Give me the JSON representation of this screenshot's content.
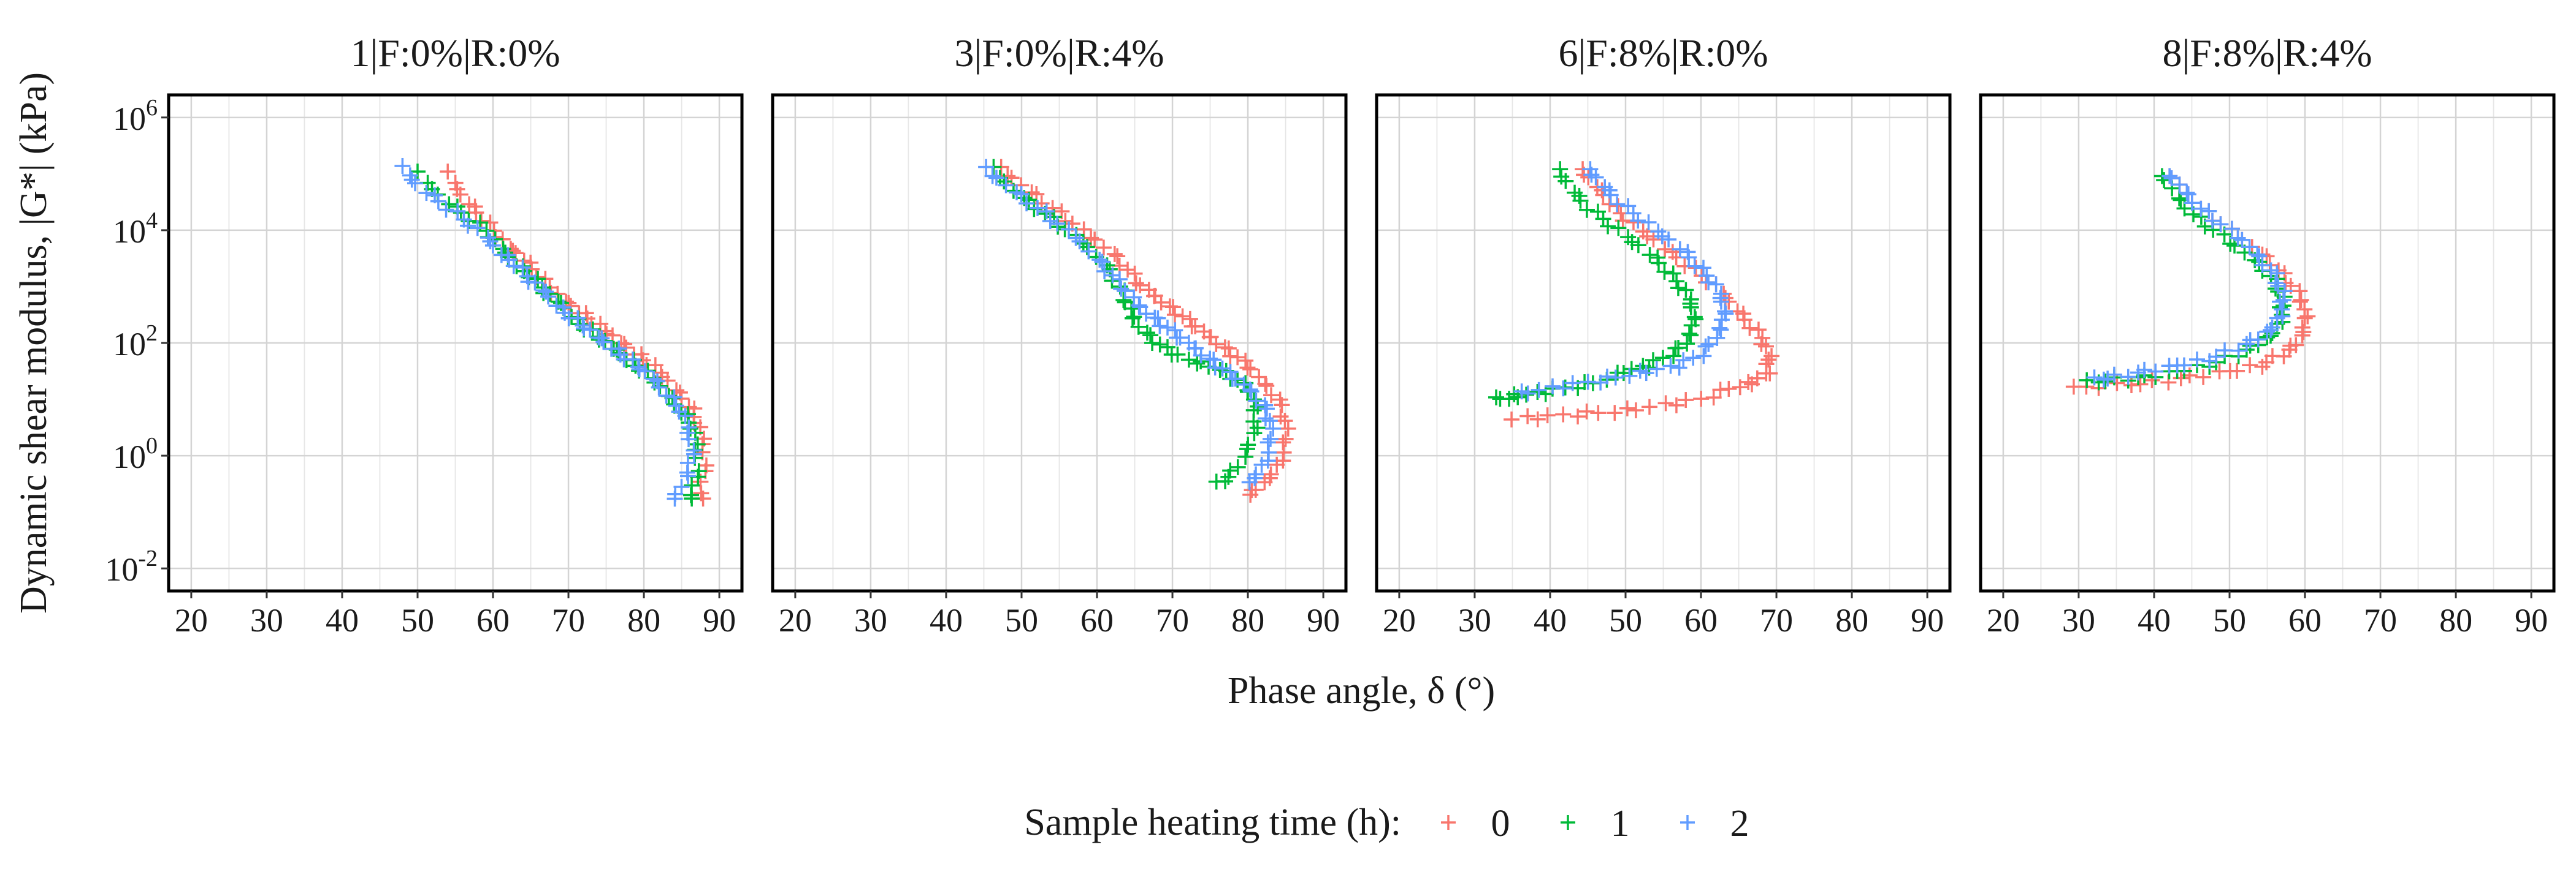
{
  "chart_data": {
    "type": "scatter",
    "x_label": "Phase angle, δ (°)",
    "y_label": "Dynamic shear modulus, |G*| (kPa)",
    "y_scale": "log10",
    "x_ticks": [
      "20",
      "30",
      "40",
      "50",
      "60",
      "70",
      "80",
      "90"
    ],
    "x_range": [
      17,
      93
    ],
    "y_ticks": [
      {
        "exp": -2,
        "label": "10",
        "sup": "-2"
      },
      {
        "exp": 0,
        "label": "10",
        "sup": "0"
      },
      {
        "exp": 2,
        "label": "10",
        "sup": "2"
      },
      {
        "exp": 4,
        "label": "10",
        "sup": "4"
      },
      {
        "exp": 6,
        "label": "10",
        "sup": "6"
      }
    ],
    "y_range_log10": [
      -2.4,
      6.4
    ],
    "marker": "+",
    "legend": {
      "title": "Sample heating time (h):",
      "position": "bottom",
      "entries": [
        {
          "label": "0",
          "color": "#F8766D"
        },
        {
          "label": "1",
          "color": "#00BA38"
        },
        {
          "label": "2",
          "color": "#619CFF"
        }
      ]
    },
    "panels": [
      {
        "title": "1|F:0%|R:0%",
        "series": [
          {
            "name": "0",
            "points": [
              [
                54,
                5.0
              ],
              [
                56,
                4.6
              ],
              [
                58,
                4.3
              ],
              [
                60,
                4.0
              ],
              [
                62,
                3.7
              ],
              [
                64,
                3.5
              ],
              [
                66,
                3.2
              ],
              [
                68,
                2.9
              ],
              [
                70,
                2.7
              ],
              [
                72,
                2.5
              ],
              [
                74,
                2.3
              ],
              [
                76,
                2.1
              ],
              [
                78,
                1.9
              ],
              [
                80,
                1.7
              ],
              [
                82,
                1.5
              ],
              [
                84,
                1.2
              ],
              [
                86,
                0.9
              ],
              [
                87,
                0.6
              ],
              [
                88,
                0.2
              ],
              [
                88,
                -0.3
              ],
              [
                87.5,
                -0.8
              ]
            ]
          },
          {
            "name": "1",
            "points": [
              [
                50,
                5.0
              ],
              [
                53,
                4.6
              ],
              [
                56,
                4.3
              ],
              [
                59,
                4.0
              ],
              [
                61,
                3.7
              ],
              [
                63,
                3.4
              ],
              [
                65,
                3.2
              ],
              [
                67,
                2.9
              ],
              [
                69,
                2.7
              ],
              [
                71,
                2.4
              ],
              [
                73,
                2.2
              ],
              [
                75,
                2.0
              ],
              [
                77,
                1.8
              ],
              [
                79,
                1.6
              ],
              [
                81,
                1.4
              ],
              [
                83,
                1.1
              ],
              [
                85,
                0.8
              ],
              [
                86.5,
                0.5
              ],
              [
                87,
                0.1
              ],
              [
                87,
                -0.4
              ],
              [
                86,
                -0.8
              ]
            ]
          },
          {
            "name": "2",
            "points": [
              [
                48,
                5.1
              ],
              [
                50,
                4.8
              ],
              [
                53,
                4.5
              ],
              [
                56,
                4.2
              ],
              [
                59,
                3.9
              ],
              [
                61,
                3.6
              ],
              [
                63,
                3.4
              ],
              [
                65,
                3.1
              ],
              [
                67,
                2.9
              ],
              [
                69,
                2.6
              ],
              [
                71,
                2.4
              ],
              [
                73,
                2.2
              ],
              [
                75,
                2.0
              ],
              [
                77,
                1.8
              ],
              [
                79,
                1.6
              ],
              [
                81,
                1.4
              ],
              [
                83,
                1.1
              ],
              [
                85,
                0.8
              ],
              [
                86,
                0.4
              ],
              [
                86.5,
                0.0
              ],
              [
                85.5,
                -0.4
              ],
              [
                84,
                -0.8
              ]
            ]
          }
        ]
      },
      {
        "title": "3|F:0%|R:4%",
        "series": [
          {
            "name": "0",
            "points": [
              [
                47,
                5.1
              ],
              [
                50,
                4.8
              ],
              [
                53,
                4.5
              ],
              [
                56,
                4.2
              ],
              [
                59,
                3.9
              ],
              [
                62,
                3.6
              ],
              [
                64,
                3.3
              ],
              [
                66,
                3.0
              ],
              [
                68,
                2.8
              ],
              [
                70,
                2.6
              ],
              [
                72,
                2.4
              ],
              [
                74,
                2.2
              ],
              [
                76,
                2.0
              ],
              [
                78,
                1.8
              ],
              [
                80,
                1.6
              ],
              [
                82,
                1.3
              ],
              [
                84,
                1.0
              ],
              [
                85,
                0.6
              ],
              [
                85,
                0.2
              ],
              [
                84,
                -0.2
              ],
              [
                82,
                -0.5
              ],
              [
                80,
                -0.7
              ]
            ]
          },
          {
            "name": "1",
            "points": [
              [
                46,
                5.1
              ],
              [
                49,
                4.7
              ],
              [
                52,
                4.4
              ],
              [
                55,
                4.1
              ],
              [
                58,
                3.8
              ],
              [
                61,
                3.4
              ],
              [
                63,
                3.0
              ],
              [
                64,
                2.7
              ],
              [
                65,
                2.4
              ],
              [
                67,
                2.1
              ],
              [
                69,
                1.9
              ],
              [
                72,
                1.7
              ],
              [
                75,
                1.6
              ],
              [
                78,
                1.4
              ],
              [
                80,
                1.2
              ],
              [
                81,
                0.9
              ],
              [
                81,
                0.5
              ],
              [
                80,
                0.1
              ],
              [
                78,
                -0.3
              ],
              [
                76,
                -0.5
              ]
            ]
          },
          {
            "name": "2",
            "points": [
              [
                45,
                5.1
              ],
              [
                48,
                4.8
              ],
              [
                51,
                4.5
              ],
              [
                54,
                4.2
              ],
              [
                57,
                3.9
              ],
              [
                60,
                3.5
              ],
              [
                62,
                3.2
              ],
              [
                64,
                2.9
              ],
              [
                66,
                2.6
              ],
              [
                68,
                2.4
              ],
              [
                70,
                2.2
              ],
              [
                72,
                2.0
              ],
              [
                74,
                1.8
              ],
              [
                76,
                1.6
              ],
              [
                78,
                1.4
              ],
              [
                80,
                1.2
              ],
              [
                82,
                0.9
              ],
              [
                83,
                0.6
              ],
              [
                83,
                0.2
              ],
              [
                82,
                -0.2
              ],
              [
                80,
                -0.5
              ]
            ]
          }
        ]
      },
      {
        "title": "6|F:8%|R:0%",
        "series": [
          {
            "name": "0",
            "points": [
              [
                44,
                5.1
              ],
              [
                46,
                4.8
              ],
              [
                48,
                4.5
              ],
              [
                50,
                4.2
              ],
              [
                53,
                3.9
              ],
              [
                56,
                3.6
              ],
              [
                59,
                3.3
              ],
              [
                62,
                3.0
              ],
              [
                64,
                2.7
              ],
              [
                66,
                2.4
              ],
              [
                68,
                2.1
              ],
              [
                69,
                1.8
              ],
              [
                69,
                1.5
              ],
              [
                67,
                1.3
              ],
              [
                64,
                1.2
              ],
              [
                60,
                1.0
              ],
              [
                55,
                0.9
              ],
              [
                50,
                0.8
              ],
              [
                45,
                0.75
              ],
              [
                40,
                0.7
              ],
              [
                35,
                0.65
              ]
            ]
          },
          {
            "name": "1",
            "points": [
              [
                41,
                5.1
              ],
              [
                43,
                4.7
              ],
              [
                45,
                4.4
              ],
              [
                48,
                4.1
              ],
              [
                51,
                3.8
              ],
              [
                54,
                3.5
              ],
              [
                56,
                3.2
              ],
              [
                58,
                2.9
              ],
              [
                59,
                2.6
              ],
              [
                59,
                2.3
              ],
              [
                58,
                2.0
              ],
              [
                56,
                1.8
              ],
              [
                53,
                1.6
              ],
              [
                50,
                1.5
              ],
              [
                46,
                1.3
              ],
              [
                42,
                1.2
              ],
              [
                38,
                1.1
              ],
              [
                35,
                1.05
              ],
              [
                33,
                1.0
              ]
            ]
          },
          {
            "name": "2",
            "points": [
              [
                45,
                5.1
              ],
              [
                47,
                4.8
              ],
              [
                49,
                4.5
              ],
              [
                52,
                4.2
              ],
              [
                55,
                3.9
              ],
              [
                58,
                3.6
              ],
              [
                60,
                3.3
              ],
              [
                62,
                3.0
              ],
              [
                63,
                2.7
              ],
              [
                63,
                2.4
              ],
              [
                62,
                2.1
              ],
              [
                60,
                1.8
              ],
              [
                57,
                1.6
              ],
              [
                53,
                1.5
              ],
              [
                49,
                1.4
              ],
              [
                45,
                1.3
              ],
              [
                40,
                1.2
              ],
              [
                36,
                1.1
              ]
            ]
          }
        ]
      },
      {
        "title": "8|F:8%|R:4%",
        "series": [
          {
            "name": "0",
            "points": [
              [
                42,
                5.0
              ],
              [
                44,
                4.7
              ],
              [
                46,
                4.4
              ],
              [
                49,
                4.1
              ],
              [
                52,
                3.8
              ],
              [
                55,
                3.5
              ],
              [
                57,
                3.2
              ],
              [
                59,
                2.9
              ],
              [
                60,
                2.6
              ],
              [
                60,
                2.3
              ],
              [
                59,
                2.0
              ],
              [
                57,
                1.8
              ],
              [
                54,
                1.6
              ],
              [
                50,
                1.5
              ],
              [
                45,
                1.4
              ],
              [
                40,
                1.3
              ],
              [
                35,
                1.25
              ],
              [
                29,
                1.2
              ]
            ]
          },
          {
            "name": "1",
            "points": [
              [
                41,
                5.0
              ],
              [
                43,
                4.6
              ],
              [
                45,
                4.3
              ],
              [
                48,
                4.0
              ],
              [
                51,
                3.7
              ],
              [
                54,
                3.4
              ],
              [
                56,
                3.1
              ],
              [
                57,
                2.8
              ],
              [
                57,
                2.5
              ],
              [
                56,
                2.2
              ],
              [
                54,
                2.0
              ],
              [
                51,
                1.8
              ],
              [
                47,
                1.6
              ],
              [
                43,
                1.5
              ],
              [
                39,
                1.4
              ],
              [
                35,
                1.35
              ],
              [
                31,
                1.3
              ]
            ]
          },
          {
            "name": "2",
            "points": [
              [
                42,
                5.0
              ],
              [
                44,
                4.7
              ],
              [
                46,
                4.4
              ],
              [
                49,
                4.1
              ],
              [
                52,
                3.8
              ],
              [
                54,
                3.5
              ],
              [
                56,
                3.2
              ],
              [
                57,
                2.9
              ],
              [
                57,
                2.6
              ],
              [
                56,
                2.3
              ],
              [
                54,
                2.1
              ],
              [
                51,
                1.9
              ],
              [
                47,
                1.7
              ],
              [
                43,
                1.6
              ],
              [
                39,
                1.5
              ],
              [
                35,
                1.4
              ],
              [
                32,
                1.35
              ]
            ]
          }
        ]
      }
    ]
  }
}
